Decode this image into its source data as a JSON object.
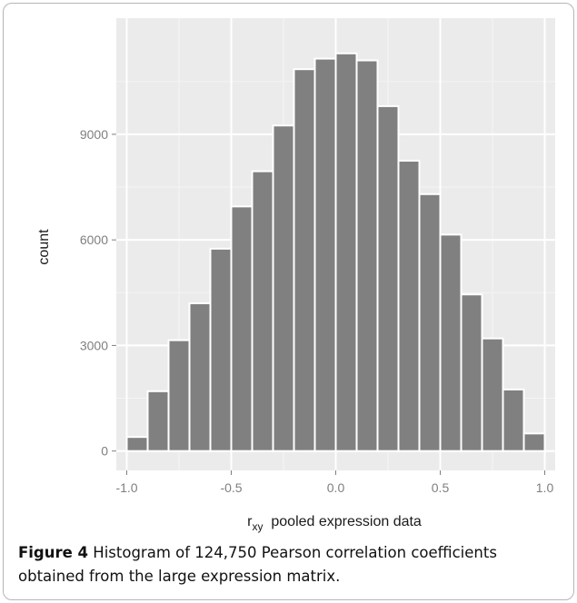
{
  "chart_data": {
    "type": "bar",
    "title": "",
    "xlabel_main": "r",
    "xlabel_sub": "xy",
    "xlabel_rest": "pooled expression data",
    "ylabel": "count",
    "x": [
      -0.95,
      -0.85,
      -0.75,
      -0.65,
      -0.55,
      -0.45,
      -0.35,
      -0.25,
      -0.15,
      -0.05,
      0.05,
      0.15,
      0.25,
      0.35,
      0.45,
      0.55,
      0.65,
      0.75,
      0.85,
      0.95
    ],
    "values": [
      400,
      1700,
      3150,
      4200,
      5750,
      6950,
      7950,
      9250,
      10850,
      11150,
      11300,
      11100,
      9800,
      8250,
      7300,
      6150,
      4450,
      3200,
      1750,
      500
    ],
    "bin_width": 0.1,
    "xlim": [
      -1.05,
      1.05
    ],
    "ylim": [
      -550,
      12300
    ],
    "xticks": [
      "-1.0",
      "-0.5",
      "0.0",
      "0.5",
      "1.0"
    ],
    "xtick_values": [
      -1.0,
      -0.5,
      0.0,
      0.5,
      1.0
    ],
    "yticks": [
      "0",
      "3000",
      "6000",
      "9000"
    ],
    "ytick_values": [
      0,
      3000,
      6000,
      9000
    ],
    "grid": true,
    "colors": {
      "panel": "#ebebeb",
      "bar": "#808080",
      "bar_edge": "#ffffff",
      "grid_major": "#ffffff",
      "grid_minor": "#f4f4f4"
    }
  },
  "caption": {
    "label": "Figure 4",
    "text": " Histogram of 124,750 Pearson correlation coefficients obtained from the large expression matrix."
  }
}
